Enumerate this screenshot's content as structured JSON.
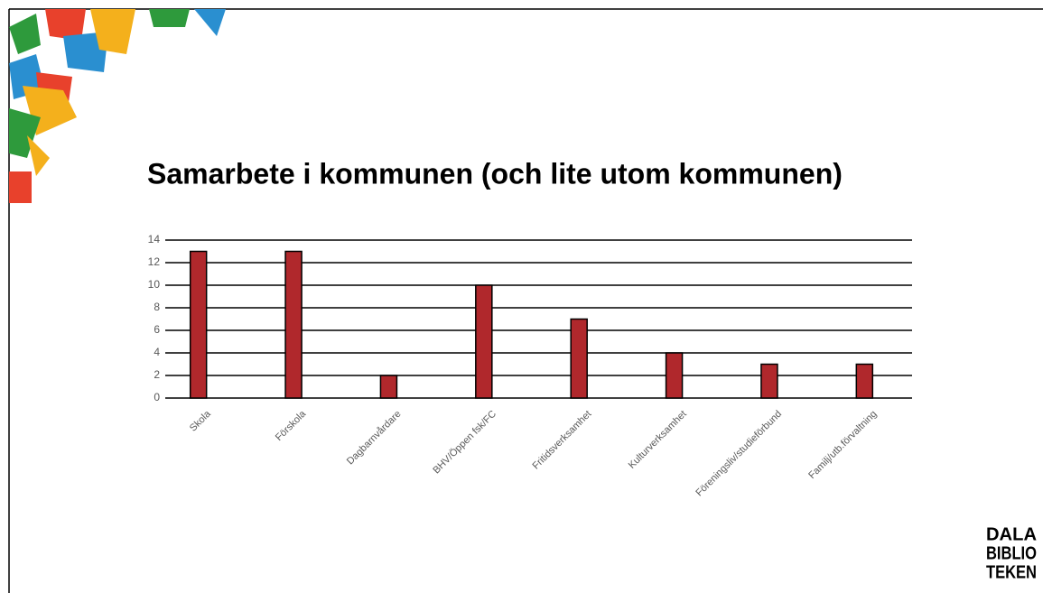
{
  "chart_data": {
    "type": "bar",
    "title": "Samarbete i kommunen (och lite utom kommunen)",
    "categories": [
      "Skola",
      "Förskola",
      "Dagbarnvårdare",
      "BHV/Öppen fsk/FC",
      "Fritidsverksamhet",
      "Kulturverksamhet",
      "Föreningsliv/studieförbund",
      "Familj/utb.förvaltning"
    ],
    "values": [
      13,
      13,
      2,
      10,
      7,
      4,
      3,
      3
    ],
    "color": "#b0282c",
    "ylim": [
      0,
      14
    ],
    "yticks": [
      0,
      2,
      4,
      6,
      8,
      10,
      12,
      14
    ],
    "grid": true
  },
  "logo": {
    "lines": [
      "DALA",
      "BIBLIO",
      "TEKEN"
    ]
  }
}
